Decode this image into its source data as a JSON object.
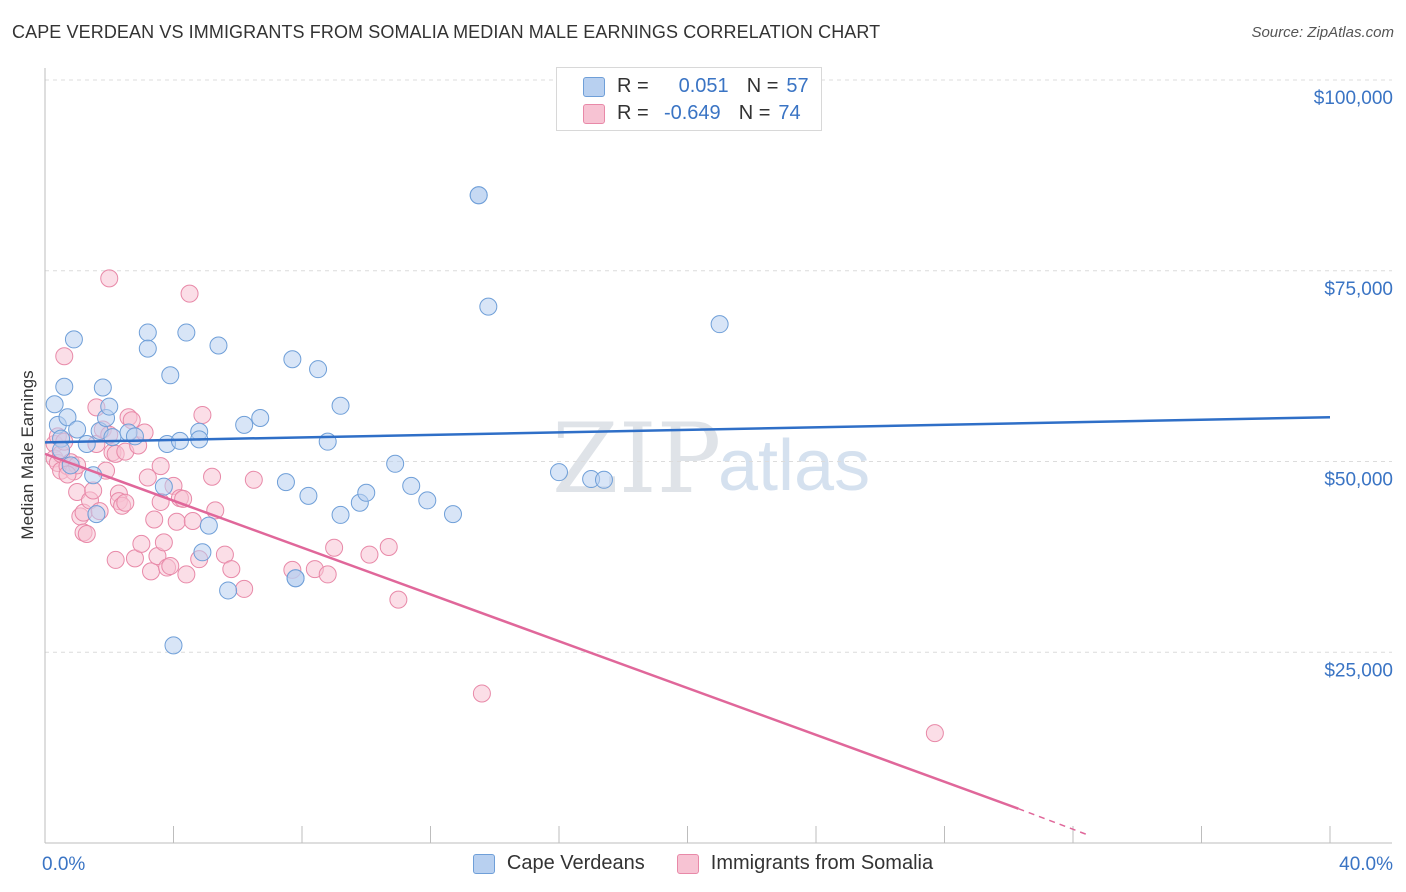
{
  "title": "CAPE VERDEAN VS IMMIGRANTS FROM SOMALIA MEDIAN MALE EARNINGS CORRELATION CHART",
  "source": "Source: ZipAtlas.com",
  "watermark": {
    "zip": "ZIP",
    "atlas": "atlas"
  },
  "legend": {
    "series1": {
      "r_label": "R =",
      "r_value": "0.051",
      "n_label": "N =",
      "n_value": "57"
    },
    "series2": {
      "r_label": "R =",
      "r_value": "-0.649",
      "n_label": "N =",
      "n_value": "74"
    }
  },
  "colors": {
    "blue_fill": "#b8d0f0",
    "blue_stroke": "#6f9fd8",
    "blue_line": "#2f6fc7",
    "pink_fill": "#f7c3d3",
    "pink_stroke": "#e889a8",
    "pink_line": "#e0679a",
    "axis_text": "#3a74c4"
  },
  "chart_data": {
    "type": "scatter",
    "title": "CAPE VERDEAN VS IMMIGRANTS FROM SOMALIA MEDIAN MALE EARNINGS CORRELATION CHART",
    "xlabel": "",
    "ylabel": "Median Male Earnings",
    "xlim": [
      0,
      40
    ],
    "ylim": [
      0,
      105000
    ],
    "x_tick_labels": [
      "0.0%",
      "40.0%"
    ],
    "y_ticks": [
      25000,
      50000,
      75000,
      100000
    ],
    "y_tick_labels": [
      "$25,000",
      "$50,000",
      "$75,000",
      "$100,000"
    ],
    "series": [
      {
        "name": "Cape Verdeans",
        "color": "#6f9fd8",
        "trend": {
          "x": [
            0,
            40
          ],
          "y": [
            52500,
            55800
          ]
        },
        "points": [
          [
            0.3,
            57500
          ],
          [
            0.4,
            54800
          ],
          [
            0.5,
            53000
          ],
          [
            0.5,
            51500
          ],
          [
            0.6,
            59800
          ],
          [
            0.7,
            55800
          ],
          [
            0.8,
            49500
          ],
          [
            0.9,
            66000
          ],
          [
            1.0,
            54200
          ],
          [
            1.3,
            52300
          ],
          [
            1.5,
            48200
          ],
          [
            1.6,
            43100
          ],
          [
            1.7,
            54000
          ],
          [
            1.8,
            59700
          ],
          [
            1.9,
            55700
          ],
          [
            2.0,
            57200
          ],
          [
            2.1,
            53200
          ],
          [
            2.6,
            53800
          ],
          [
            2.8,
            53300
          ],
          [
            3.2,
            66900
          ],
          [
            3.2,
            64800
          ],
          [
            3.7,
            46700
          ],
          [
            3.8,
            52300
          ],
          [
            3.9,
            61300
          ],
          [
            4.0,
            25900
          ],
          [
            4.2,
            52700
          ],
          [
            4.4,
            66900
          ],
          [
            4.8,
            53900
          ],
          [
            4.8,
            52900
          ],
          [
            4.9,
            38100
          ],
          [
            5.1,
            41600
          ],
          [
            5.4,
            65200
          ],
          [
            5.7,
            33100
          ],
          [
            6.2,
            54800
          ],
          [
            6.7,
            55700
          ],
          [
            7.5,
            47300
          ],
          [
            7.7,
            63400
          ],
          [
            7.8,
            34700
          ],
          [
            8.2,
            45500
          ],
          [
            8.5,
            62100
          ],
          [
            8.8,
            52600
          ],
          [
            9.2,
            57300
          ],
          [
            9.2,
            43000
          ],
          [
            9.8,
            44600
          ],
          [
            10.0,
            45900
          ],
          [
            10.9,
            49700
          ],
          [
            11.4,
            46800
          ],
          [
            11.9,
            44900
          ],
          [
            12.7,
            43100
          ],
          [
            13.5,
            84900
          ],
          [
            13.8,
            70300
          ],
          [
            16.0,
            48600
          ],
          [
            17.0,
            47700
          ],
          [
            17.4,
            47600
          ],
          [
            21.0,
            68000
          ],
          [
            13.5,
            84900
          ],
          [
            7.8,
            34700
          ]
        ]
      },
      {
        "name": "Immigrants from Somalia",
        "color": "#e889a8",
        "trend": {
          "x": [
            0,
            30.3
          ],
          "y": [
            51000,
            4500
          ],
          "dashed_to": {
            "x": [
              30.3,
              32.5
            ],
            "y": [
              4500,
              1000
            ]
          }
        },
        "points": [
          [
            0.3,
            52300
          ],
          [
            0.3,
            50400
          ],
          [
            0.4,
            49800
          ],
          [
            0.4,
            53300
          ],
          [
            0.5,
            51000
          ],
          [
            0.5,
            48800
          ],
          [
            0.6,
            63800
          ],
          [
            0.6,
            52600
          ],
          [
            0.7,
            49400
          ],
          [
            0.8,
            49900
          ],
          [
            0.9,
            48700
          ],
          [
            1.0,
            46000
          ],
          [
            1.1,
            42800
          ],
          [
            1.2,
            43300
          ],
          [
            1.2,
            40700
          ],
          [
            1.3,
            40500
          ],
          [
            1.4,
            44900
          ],
          [
            1.5,
            46200
          ],
          [
            1.6,
            52300
          ],
          [
            1.6,
            57100
          ],
          [
            1.7,
            43500
          ],
          [
            1.8,
            54200
          ],
          [
            1.9,
            48800
          ],
          [
            2.0,
            74000
          ],
          [
            2.0,
            53500
          ],
          [
            2.1,
            51200
          ],
          [
            2.2,
            51000
          ],
          [
            2.2,
            37100
          ],
          [
            2.3,
            45800
          ],
          [
            2.3,
            44800
          ],
          [
            2.4,
            44200
          ],
          [
            2.5,
            51300
          ],
          [
            2.6,
            55800
          ],
          [
            2.7,
            55400
          ],
          [
            2.8,
            37300
          ],
          [
            2.9,
            52100
          ],
          [
            3.0,
            39200
          ],
          [
            3.1,
            53800
          ],
          [
            3.2,
            47900
          ],
          [
            3.3,
            35600
          ],
          [
            3.4,
            42400
          ],
          [
            3.5,
            37600
          ],
          [
            3.6,
            49400
          ],
          [
            3.6,
            44700
          ],
          [
            3.7,
            39400
          ],
          [
            3.8,
            36100
          ],
          [
            3.9,
            36300
          ],
          [
            4.0,
            46800
          ],
          [
            4.1,
            42100
          ],
          [
            4.2,
            45200
          ],
          [
            4.3,
            45100
          ],
          [
            4.4,
            35200
          ],
          [
            4.5,
            72000
          ],
          [
            4.6,
            42200
          ],
          [
            4.8,
            37200
          ],
          [
            4.9,
            56100
          ],
          [
            5.2,
            48000
          ],
          [
            5.3,
            43600
          ],
          [
            5.6,
            37800
          ],
          [
            5.8,
            35900
          ],
          [
            6.2,
            33300
          ],
          [
            6.5,
            47600
          ],
          [
            7.7,
            35800
          ],
          [
            8.4,
            35900
          ],
          [
            8.8,
            35200
          ],
          [
            9.0,
            38700
          ],
          [
            10.1,
            37800
          ],
          [
            10.7,
            38800
          ],
          [
            11.0,
            31900
          ],
          [
            13.6,
            19600
          ],
          [
            27.7,
            14400
          ],
          [
            1.0,
            49500
          ],
          [
            0.7,
            48300
          ],
          [
            2.5,
            44600
          ]
        ]
      }
    ]
  },
  "bottom_legend": {
    "series1": "Cape Verdeans",
    "series2": "Immigrants from Somalia"
  }
}
